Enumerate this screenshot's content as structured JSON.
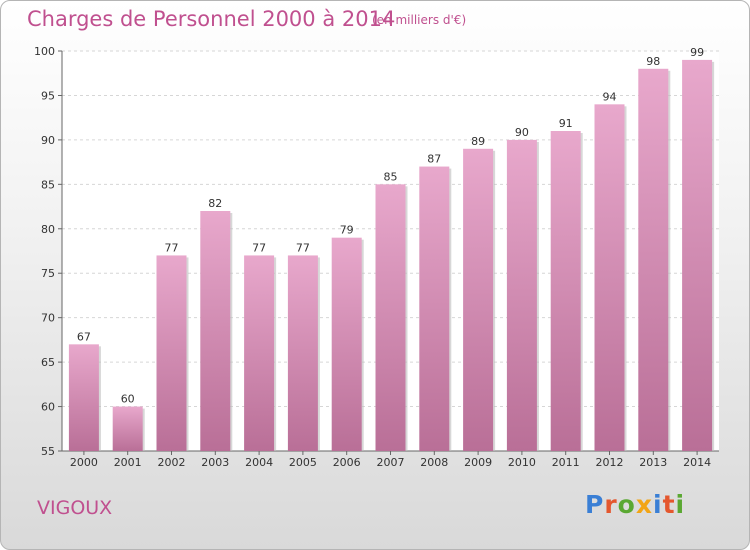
{
  "header": {
    "title": "Charges de Personnel 2000 à 2014",
    "subtitle": "(en milliers d'€)"
  },
  "footer": {
    "commune": "VIGOUX",
    "logo": [
      {
        "ch": "P",
        "color": "#3a7fd5"
      },
      {
        "ch": "r",
        "color": "#e4572e"
      },
      {
        "ch": "o",
        "color": "#5aa832"
      },
      {
        "ch": "x",
        "color": "#f2a516"
      },
      {
        "ch": "i",
        "color": "#3a7fd5"
      },
      {
        "ch": "t",
        "color": "#e4572e"
      },
      {
        "ch": "i",
        "color": "#5aa832"
      }
    ]
  },
  "colors": {
    "accent": "#c0508f",
    "bar_top": "#e8a8cc",
    "bar_bottom": "#b96f97"
  },
  "chart_data": {
    "type": "bar",
    "title": "Charges de Personnel 2000 à 2014",
    "subtitle": "(en milliers d'€)",
    "categories": [
      "2000",
      "2001",
      "2002",
      "2003",
      "2004",
      "2005",
      "2006",
      "2007",
      "2008",
      "2009",
      "2010",
      "2011",
      "2012",
      "2013",
      "2014"
    ],
    "values": [
      67,
      60,
      77,
      82,
      77,
      77,
      79,
      85,
      87,
      89,
      90,
      91,
      94,
      98,
      99
    ],
    "ylim": [
      55,
      100
    ],
    "yticks": [
      55,
      60,
      65,
      70,
      75,
      80,
      85,
      90,
      95,
      100
    ],
    "grid": true,
    "data_labels": true
  }
}
